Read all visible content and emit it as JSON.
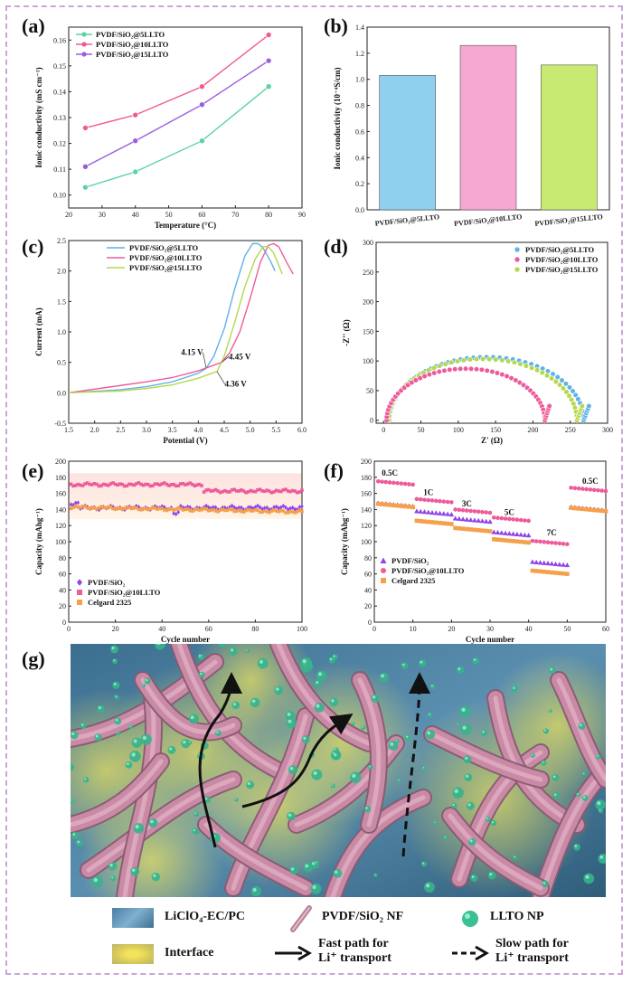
{
  "labels": {
    "a": "(a)",
    "b": "(b)",
    "c": "(c)",
    "d": "(d)",
    "e": "(e)",
    "f": "(f)",
    "g": "(g)"
  },
  "colors": {
    "s5": "#5ad3a0",
    "s10": "#ef5b8f",
    "s15": "#9a5fe0",
    "c5": "#5fb3e8",
    "c10": "#ee5b9a",
    "c15": "#b6d84e",
    "pvdf": "#8e44e8",
    "celgard": "#f5a04a",
    "frame": "#c9a7d8"
  },
  "chart_data": [
    {
      "id": "a",
      "type": "line",
      "xlabel": "Temperature (°C)",
      "ylabel": "Ionic conductivity (mS cm⁻¹)",
      "xlim": [
        20,
        90
      ],
      "ylim": [
        0.095,
        0.165
      ],
      "xticks": [
        20,
        30,
        40,
        50,
        60,
        70,
        80,
        90
      ],
      "yticks": [
        0.1,
        0.11,
        0.12,
        0.13,
        0.14,
        0.15,
        0.16
      ],
      "x": [
        25,
        40,
        60,
        80
      ],
      "series": [
        {
          "name": "PVDF/SiO₂@5LLTO",
          "values": [
            0.103,
            0.109,
            0.121,
            0.142
          ],
          "color": "#5ad3a0"
        },
        {
          "name": "PVDF/SiO₂@10LLTO",
          "values": [
            0.126,
            0.131,
            0.142,
            0.162
          ],
          "color": "#ef5b8f"
        },
        {
          "name": "PVDF/SiO₂@15LLTO",
          "values": [
            0.111,
            0.121,
            0.135,
            0.152
          ],
          "color": "#9a5fe0"
        }
      ],
      "legend": "top-left"
    },
    {
      "id": "b",
      "type": "bar",
      "ylabel": "Ionic conductivity (10⁻⁴S/cm)",
      "ylim": [
        0,
        1.4
      ],
      "yticks": [
        0.0,
        0.2,
        0.4,
        0.6,
        0.8,
        1.0,
        1.2,
        1.4
      ],
      "categories": [
        "PVDF/SiO₂@5LLTO",
        "PVDF/SiO₂@10LLTO",
        "PVDF/SiO₂@15LLTO"
      ],
      "values": [
        1.03,
        1.26,
        1.11
      ],
      "colors": [
        "#8fd0ee",
        "#f6a7d2",
        "#c8ea72"
      ]
    },
    {
      "id": "c",
      "type": "line",
      "xlabel": "Potential (V)",
      "ylabel": "Current (mA)",
      "xlim": [
        1.5,
        6.0
      ],
      "ylim": [
        -0.5,
        2.5
      ],
      "xticks": [
        1.5,
        2.0,
        2.5,
        3.0,
        3.5,
        4.0,
        4.5,
        5.0,
        5.5,
        6.0
      ],
      "yticks": [
        -0.5,
        0.0,
        0.5,
        1.0,
        1.5,
        2.0,
        2.5
      ],
      "series": [
        {
          "name": "PVDF/SiO₂@5LLTO",
          "color": "#5fb3e8",
          "x": [
            1.5,
            2.5,
            3.0,
            3.5,
            4.0,
            4.15,
            4.3,
            4.5,
            4.7,
            4.9,
            5.05,
            5.15,
            5.25,
            5.4,
            5.48
          ],
          "y": [
            0.0,
            0.05,
            0.1,
            0.18,
            0.32,
            0.4,
            0.6,
            1.05,
            1.7,
            2.25,
            2.45,
            2.45,
            2.38,
            2.15,
            2.0
          ]
        },
        {
          "name": "PVDF/SiO₂@10LLTO",
          "color": "#ee5b9a",
          "x": [
            1.5,
            2.5,
            3.0,
            3.5,
            4.0,
            4.45,
            4.6,
            4.8,
            5.0,
            5.2,
            5.35,
            5.45,
            5.55,
            5.7,
            5.83
          ],
          "y": [
            0.0,
            0.12,
            0.18,
            0.25,
            0.36,
            0.5,
            0.65,
            1.0,
            1.55,
            2.15,
            2.42,
            2.45,
            2.4,
            2.15,
            1.95
          ]
        },
        {
          "name": "PVDF/SiO₂@15LLTO",
          "color": "#b6d84e",
          "x": [
            1.5,
            2.5,
            3.0,
            3.5,
            4.0,
            4.36,
            4.5,
            4.7,
            4.9,
            5.1,
            5.25,
            5.35,
            5.45,
            5.55,
            5.62
          ],
          "y": [
            0.0,
            0.03,
            0.07,
            0.13,
            0.24,
            0.35,
            0.6,
            1.15,
            1.75,
            2.2,
            2.4,
            2.4,
            2.3,
            2.1,
            1.95
          ]
        }
      ],
      "annotations": [
        "4.15 V",
        "4.45 V",
        "4.36 V"
      ],
      "legend": "top-left"
    },
    {
      "id": "d",
      "type": "scatter",
      "xlabel": "Z' (Ω)",
      "ylabel": "-Z'' (Ω)",
      "xlim": [
        -10,
        300
      ],
      "ylim": [
        -5,
        300
      ],
      "xticks": [
        0,
        50,
        100,
        150,
        200,
        250,
        300
      ],
      "yticks": [
        0,
        50,
        100,
        150,
        200,
        250,
        300
      ],
      "series": [
        {
          "name": "PVDF/SiO₂@5LLTO",
          "color": "#5fb3e8",
          "center": 138,
          "radius": 130,
          "tail_end": 275
        },
        {
          "name": "PVDF/SiO₂@10LLTO",
          "color": "#ee5b9a",
          "center": 110,
          "radius": 106,
          "tail_end": 222
        },
        {
          "name": "PVDF/SiO₂@15LLTO",
          "color": "#b6d84e",
          "center": 133,
          "radius": 126,
          "tail_end": 266
        }
      ],
      "legend": "top-right"
    },
    {
      "id": "e",
      "type": "scatter",
      "xlabel": "Cycle number",
      "ylabel": "Capacity (mAhg⁻¹)",
      "xlim": [
        0,
        100
      ],
      "ylim": [
        0,
        200
      ],
      "xticks": [
        0,
        20,
        40,
        60,
        80,
        100
      ],
      "yticks": [
        0,
        20,
        40,
        60,
        80,
        100,
        120,
        140,
        160,
        180,
        200
      ],
      "series": [
        {
          "name": "PVDF/SiO₂",
          "color": "#8e44e8",
          "marker": "diamond",
          "approx_value": 142
        },
        {
          "name": "PVDF/SiO₂@10LLTO",
          "color": "#ee5b9a",
          "marker": "square",
          "approx_value": 168
        },
        {
          "name": "Celgard 2325",
          "color": "#f5a04a",
          "marker": "square",
          "approx_value": 140
        }
      ],
      "legend": "bottom-left"
    },
    {
      "id": "f",
      "type": "scatter",
      "xlabel": "Cycle number",
      "ylabel": "Capacity (mAhg⁻¹)",
      "xlim": [
        0,
        60
      ],
      "ylim": [
        0,
        200
      ],
      "xticks": [
        0,
        10,
        20,
        30,
        40,
        50,
        60
      ],
      "yticks": [
        0,
        20,
        40,
        60,
        80,
        100,
        120,
        140,
        160,
        180,
        200
      ],
      "rates": [
        "0.5C",
        "1C",
        "3C",
        "5C",
        "7C",
        "0.5C"
      ],
      "series": [
        {
          "name": "PVDF/SiO₂",
          "color": "#8e44e8",
          "marker": "triangle",
          "rate_values": [
            146,
            136,
            127,
            110,
            73,
            141
          ]
        },
        {
          "name": "PVDF/SiO₂@10LLTO",
          "color": "#ee5b9a",
          "marker": "circle",
          "rate_values": [
            173,
            151,
            138,
            128,
            99,
            165
          ]
        },
        {
          "name": "Celgard 2325",
          "color": "#f5a04a",
          "marker": "square",
          "rate_values": [
            145,
            124,
            115,
            101,
            62,
            140
          ]
        }
      ],
      "legend": "bottom-left"
    }
  ],
  "schematic": {
    "legend": {
      "electrolyte": "LiClO₄-EC/PC",
      "nanofiber": "PVDF/SiO₂ NF",
      "nanoparticle": "LLTO NP",
      "interface": "Interface",
      "fast_path_1": "Fast path for",
      "fast_path_2": "Li⁺ transport",
      "slow_path_1": "Slow path for",
      "slow_path_2": "Li⁺ transport"
    }
  }
}
